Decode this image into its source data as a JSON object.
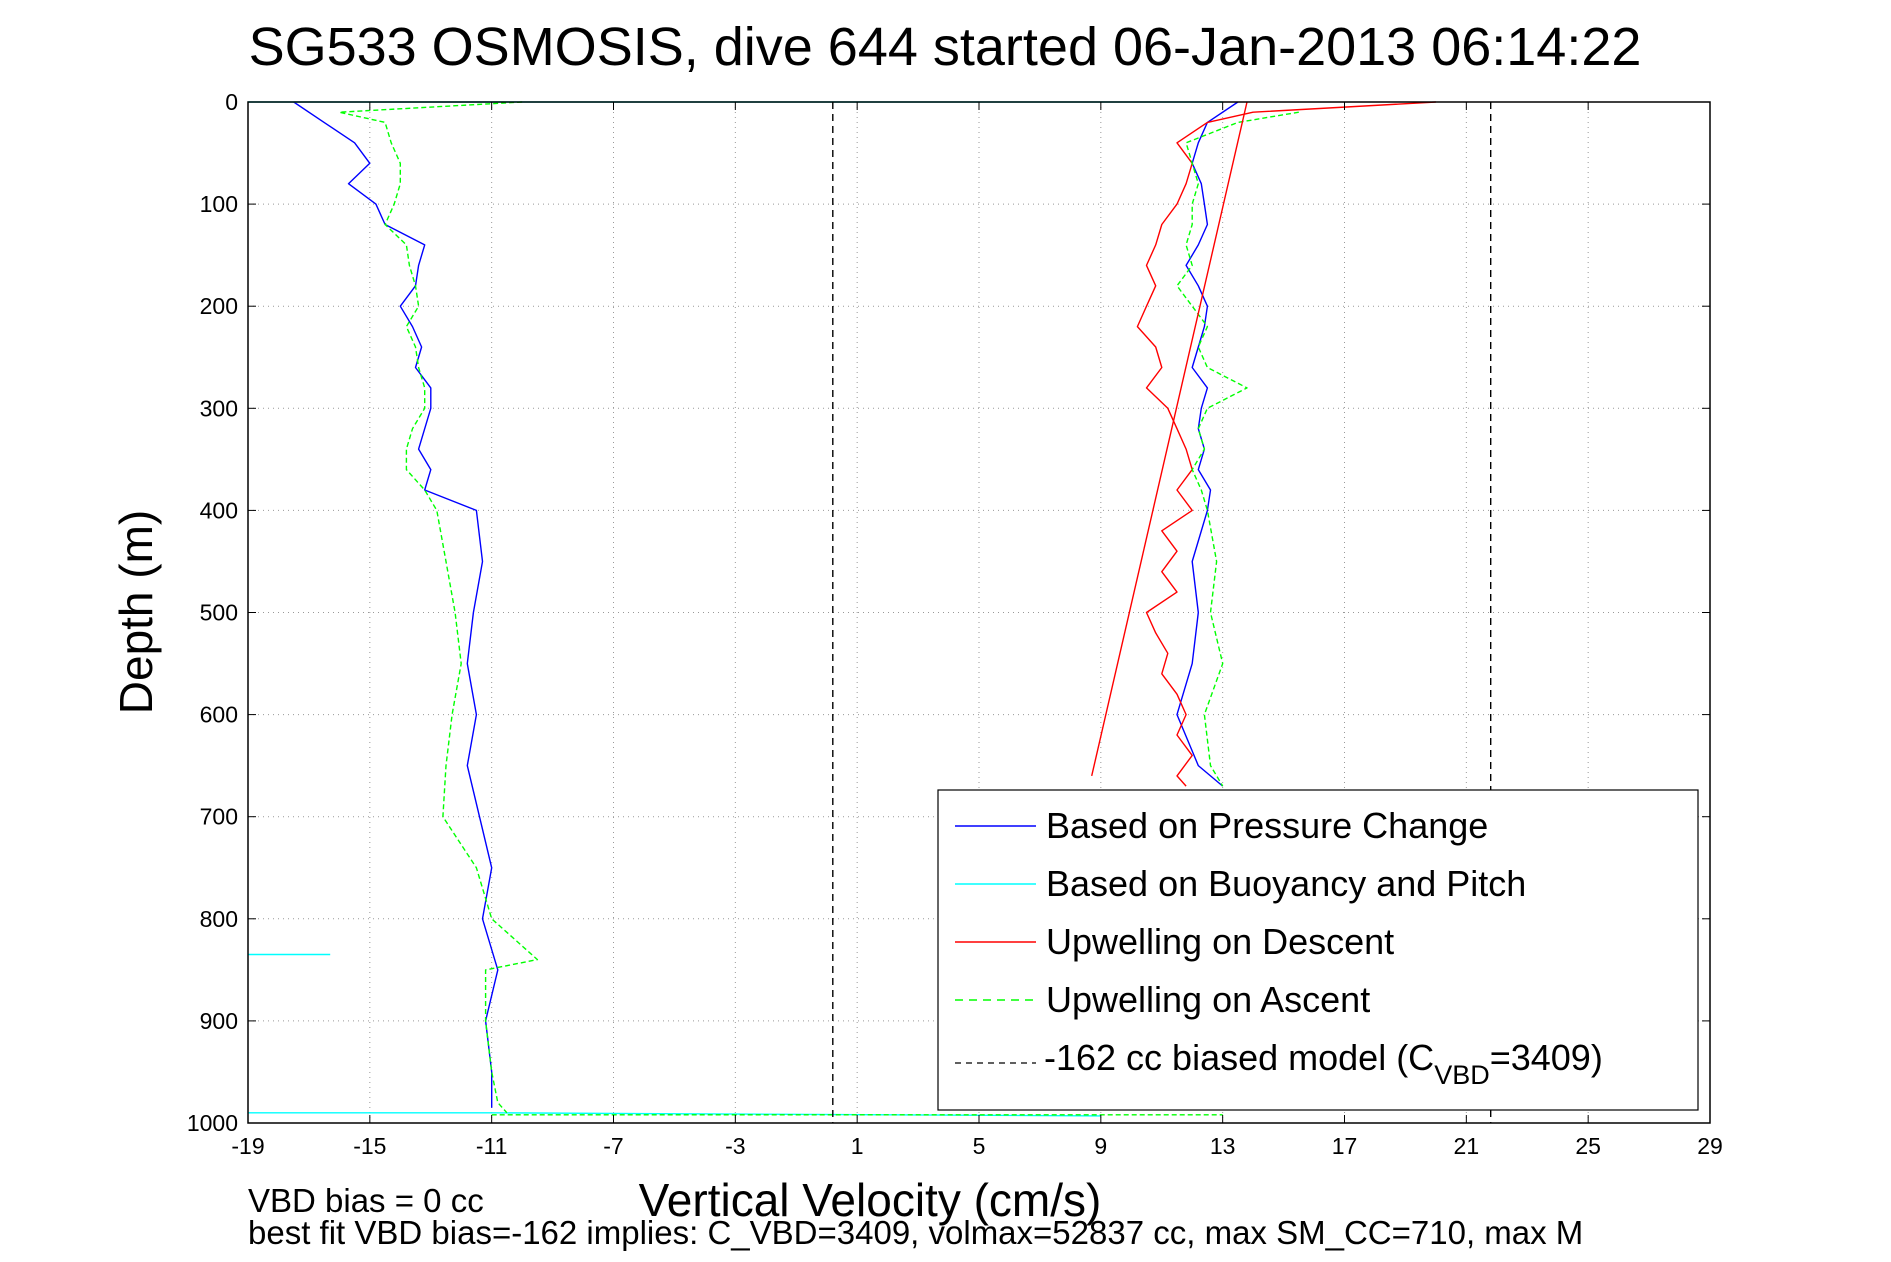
{
  "chart_data": {
    "type": "line",
    "title": "SG533 OSMOSIS, dive 644 started 06-Jan-2013 06:14:22",
    "xlabel": "Vertical Velocity (cm/s)",
    "ylabel": "Depth (m)",
    "xlim": [
      -19,
      29
    ],
    "ylim": [
      0,
      1000
    ],
    "y_reversed": true,
    "grid": true,
    "x_ticks": [
      "-19",
      "-15",
      "-11",
      "-7",
      "-3",
      "1",
      "5",
      "9",
      "13",
      "17",
      "21",
      "25",
      "29"
    ],
    "y_ticks": [
      "0",
      "100",
      "200",
      "300",
      "400",
      "500",
      "600",
      "700",
      "800",
      "900",
      "1000"
    ],
    "legend": {
      "position": "bottom-right",
      "entries": [
        {
          "label": "Based on Pressure Change",
          "color": "#0000ff",
          "dash": "solid"
        },
        {
          "label": "Based on Buoyancy and Pitch",
          "color": "#00ffff",
          "dash": "solid"
        },
        {
          "label": "Upwelling on Descent",
          "color": "#ff0000",
          "dash": "solid"
        },
        {
          "label": "Upwelling on Ascent",
          "color": "#00ff00",
          "dash": "dashed"
        },
        {
          "label_main": "-162 cc biased model (C",
          "label_sub": "VBD",
          "label_tail": "=3409)",
          "color": "#000000",
          "dash": "dashed"
        }
      ]
    },
    "series": [
      {
        "name": "Based on Pressure Change",
        "color": "#0000ff",
        "depth": [
          0,
          20,
          40,
          60,
          80,
          100,
          120,
          140,
          160,
          180,
          200,
          220,
          240,
          260,
          280,
          300,
          320,
          340,
          360,
          380,
          400,
          450,
          500,
          550,
          600,
          650,
          700,
          750,
          800,
          850,
          900,
          950,
          985
        ],
        "velocity": [
          -17.5,
          -16.5,
          -15.5,
          -15.0,
          -15.7,
          -14.8,
          -14.5,
          -13.2,
          -13.4,
          -13.5,
          -14.0,
          -13.6,
          -13.3,
          -13.5,
          -13.0,
          -13.0,
          -13.2,
          -13.4,
          -13.0,
          -13.2,
          -11.5,
          -11.3,
          -11.6,
          -11.8,
          -11.5,
          -11.8,
          -11.4,
          -11.0,
          -11.3,
          -10.8,
          -11.2,
          -11.0,
          -11.0
        ]
      },
      {
        "name": "Based on Pressure Change",
        "color": "#0000ff",
        "depth": [
          0,
          20,
          40,
          60,
          80,
          100,
          120,
          140,
          160,
          180,
          200,
          220,
          240,
          260,
          280,
          300,
          320,
          340,
          360,
          380,
          400,
          450,
          500,
          550,
          600,
          650,
          670
        ],
        "velocity": [
          13.5,
          12.5,
          12.2,
          12.0,
          12.3,
          12.4,
          12.5,
          12.2,
          11.8,
          12.2,
          12.5,
          12.4,
          12.2,
          12.0,
          12.5,
          12.3,
          12.2,
          12.4,
          12.2,
          12.6,
          12.5,
          12.0,
          12.2,
          12.0,
          11.5,
          12.2,
          13.0
        ]
      },
      {
        "name": "Based on Buoyancy and Pitch",
        "color": "#00ffff",
        "depth": [
          0,
          0,
          0
        ],
        "velocity": [
          -19,
          1,
          13
        ]
      },
      {
        "name": "Based on Buoyancy and Pitch",
        "color": "#00ffff",
        "depth": [
          835,
          835
        ],
        "velocity": [
          -19,
          -16.3
        ]
      },
      {
        "name": "Based on Buoyancy and Pitch",
        "color": "#00ffff",
        "depth": [
          990,
          990,
          993
        ],
        "velocity": [
          -19,
          -11,
          9
        ]
      },
      {
        "name": "Upwelling on Descent",
        "color": "#ff0000",
        "depth": [
          0,
          10,
          20,
          40,
          60,
          80,
          100,
          120,
          140,
          160,
          180,
          200,
          220,
          240,
          260,
          280,
          300,
          320,
          340,
          360,
          380,
          400,
          420,
          440,
          460,
          480,
          500,
          520,
          540,
          560,
          580,
          600,
          620,
          640,
          660,
          670
        ],
        "velocity": [
          20.0,
          14.0,
          12.5,
          11.5,
          12.0,
          11.8,
          11.5,
          11.0,
          10.8,
          10.5,
          10.8,
          10.5,
          10.2,
          10.8,
          11.0,
          10.5,
          11.2,
          11.5,
          11.8,
          12.0,
          11.5,
          12.0,
          11.0,
          11.5,
          11.0,
          11.5,
          10.5,
          10.8,
          11.2,
          11.0,
          11.5,
          11.8,
          11.5,
          12.0,
          11.5,
          11.8
        ]
      },
      {
        "name": "Upwelling on Ascent",
        "color": "#00ff00",
        "depth": [
          0,
          10,
          20,
          40,
          60,
          80,
          100,
          120,
          140,
          160,
          180,
          200,
          220,
          240,
          260,
          280,
          300,
          320,
          340,
          360,
          380,
          400,
          450,
          500,
          550,
          600,
          650,
          700,
          750,
          800,
          840,
          850,
          900,
          950,
          980,
          990
        ],
        "velocity": [
          -10.0,
          -16.0,
          -14.5,
          -14.3,
          -14.0,
          -14.0,
          -14.2,
          -14.5,
          -13.8,
          -13.7,
          -13.5,
          -13.4,
          -13.8,
          -13.5,
          -13.4,
          -13.2,
          -13.2,
          -13.6,
          -13.8,
          -13.8,
          -13.2,
          -12.8,
          -12.5,
          -12.2,
          -12.0,
          -12.3,
          -12.5,
          -12.6,
          -11.5,
          -11.0,
          -9.5,
          -11.2,
          -11.2,
          -11.0,
          -10.8,
          -10.5
        ]
      },
      {
        "name": "Upwelling on Ascent",
        "color": "#00ff00",
        "depth": [
          10,
          20,
          40,
          60,
          80,
          100,
          120,
          140,
          160,
          180,
          200,
          220,
          240,
          260,
          280,
          300,
          320,
          340,
          360,
          380,
          400,
          450,
          500,
          550,
          600,
          650,
          670
        ],
        "velocity": [
          15.5,
          13.5,
          11.8,
          12.0,
          12.2,
          12.0,
          12.0,
          11.8,
          12.0,
          11.5,
          12.0,
          12.5,
          12.2,
          12.5,
          13.8,
          12.5,
          12.2,
          12.4,
          12.0,
          12.3,
          12.5,
          12.8,
          12.6,
          13.0,
          12.4,
          12.6,
          13.0
        ]
      },
      {
        "name": "Upwelling on Ascent",
        "color": "#00ff00",
        "depth": [
          992,
          992
        ],
        "velocity": [
          -11,
          13
        ]
      },
      {
        "name": "-162 cc biased model",
        "color": "#000000",
        "depth": [
          0,
          1000
        ],
        "velocity": [
          21.8,
          21.8
        ]
      },
      {
        "name": "-162 cc biased model",
        "color": "#000000",
        "depth": [
          0,
          1000
        ],
        "velocity": [
          0.2,
          0.2
        ]
      },
      {
        "name": "Upwelling on Descent",
        "color": "#ff0000",
        "depth": [
          0,
          660
        ],
        "velocity": [
          13.8,
          8.7
        ]
      }
    ]
  },
  "footer": {
    "line1": "VBD bias = 0 cc",
    "line2": "best fit VBD bias=-162 implies: C_VBD=3409, volmax=52837 cc, max SM_CC=710, max M"
  }
}
